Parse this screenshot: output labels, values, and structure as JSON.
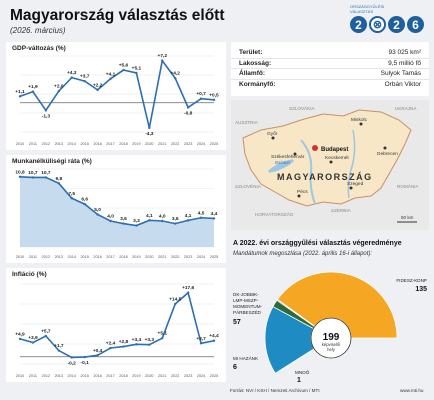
{
  "header": {
    "title": "Magyarország választás előtt",
    "subtitle": "(2026. március)",
    "logo_caption_1": "ORSZÁGGYŰLÉSI",
    "logo_caption_2": "VÁLASZTÁS",
    "logo_digits": [
      "2",
      "⊗",
      "2",
      "6"
    ]
  },
  "colors": {
    "line": "#2b6fb0",
    "area": "#c7dbee",
    "fidesz": "#f5a623",
    "opposition": "#1e8bc3",
    "mihazank": "#2e6b3a",
    "mnoo": "#8a8a8a",
    "hungary": "#f7e7c7",
    "neighbors": "#e8e8e8",
    "water": "#9cc6e6"
  },
  "facts": [
    {
      "key": "Terület:",
      "value": "93 025 km²"
    },
    {
      "key": "Lakosság:",
      "value": "9,5 millió fő"
    },
    {
      "key": "Államfő:",
      "value": "Sulyok Tamás"
    },
    {
      "key": "Kormányfő:",
      "value": "Orbán Viktor"
    }
  ],
  "map": {
    "country": "MAGYARORSZÁG",
    "capital": "Budapest",
    "cities": [
      "Miskolc",
      "Győr",
      "Debrecen",
      "Székesfehérvár",
      "Kecskemét",
      "Szeged",
      "Pécs"
    ],
    "neighbors": [
      "SZLOVÁKIA",
      "UKRAJNA",
      "AUSZTRIA",
      "ROMÁNIA",
      "SZLOVÉNIA",
      "HORVÁTORSZÁG",
      "SZERBIA"
    ],
    "lakes": [
      "Balaton"
    ],
    "scale": "50 km"
  },
  "chart_data": [
    {
      "type": "line",
      "title": "GDP-változás (%)",
      "x": [
        "2010",
        "2011",
        "2012",
        "2013",
        "2014",
        "2015",
        "2016",
        "2017",
        "2018",
        "2019",
        "2020",
        "2021",
        "2022",
        "2023",
        "2024",
        "2025"
      ],
      "values": [
        1.1,
        1.9,
        -1.3,
        2.0,
        4.3,
        3.7,
        2.2,
        4.1,
        5.6,
        5.1,
        -4.3,
        7.2,
        4.2,
        -0.8,
        0.7,
        0.5
      ],
      "labels": [
        "+1,1",
        "+1,9",
        "-1,3",
        "+2,0",
        "+4,3",
        "+3,7",
        "+2,2",
        "+4,1",
        "+5,6",
        "+5,1",
        "-4,3",
        "+7,2",
        "+4,2",
        "-0,8",
        "+0,7",
        "+0,5"
      ],
      "ylim": [
        -5,
        8
      ]
    },
    {
      "type": "area",
      "title": "Munkanélküliségi ráta (%)",
      "x": [
        "2010",
        "2011",
        "2012",
        "2013",
        "2014",
        "2015",
        "2016",
        "2017",
        "2018",
        "2019",
        "2020",
        "2021",
        "2022",
        "2023",
        "2024",
        "2025"
      ],
      "values": [
        10.8,
        10.7,
        10.7,
        9.8,
        7.5,
        6.6,
        5.0,
        4.0,
        3.6,
        3.3,
        4.1,
        4.0,
        3.6,
        4.1,
        4.5,
        4.4
      ],
      "labels": [
        "10,8",
        "10,7",
        "10,7",
        "9,8",
        "7,5",
        "6,6",
        "5,0",
        "4,0",
        "3,6",
        "3,3",
        "4,1",
        "4,0",
        "3,6",
        "4,1",
        "4,5",
        "4,4"
      ],
      "ylim": [
        0,
        12
      ]
    },
    {
      "type": "line",
      "title": "Infláció (%)",
      "x": [
        "2010",
        "2011",
        "2012",
        "2013",
        "2014",
        "2015",
        "2016",
        "2017",
        "2018",
        "2019",
        "2020",
        "2021",
        "2022",
        "2023",
        "2024",
        "2025"
      ],
      "values": [
        4.9,
        3.9,
        5.7,
        1.7,
        -0.2,
        -0.1,
        0.4,
        2.4,
        2.8,
        3.4,
        3.3,
        5.1,
        14.5,
        17.6,
        3.7,
        4.4
      ],
      "labels": [
        "+4,9",
        "+3,9",
        "+5,7",
        "+1,7",
        "-0,2",
        "-0,1",
        "+0,4",
        "+2,4",
        "+2,8",
        "+3,4",
        "+3,3",
        "+5,1",
        "+14,5",
        "+17,6",
        "+3,7",
        "+4,4"
      ],
      "ylim": [
        -2,
        20
      ]
    },
    {
      "type": "pie",
      "title": "A 2022. évi országgyűlési választás végeredménye",
      "subtitle": "Mandátumok megoszlása (2022. április 16-i állapot):",
      "center_value": "199",
      "center_label_1": "képviselői",
      "center_label_2": "hely",
      "slices": [
        {
          "name": "DK-JOBBIK-LMP-MSZP-MOMENTUM-PÁRBESZÉD",
          "value": 57
        },
        {
          "name": "MI HAZÁNK",
          "value": 6
        },
        {
          "name": "MNOÖ",
          "value": 1
        },
        {
          "name": "FIDESZ-KDNP",
          "value": 135
        }
      ]
    }
  ],
  "footer": {
    "source": "Forrás: NVI / KSH / Nemzeti Archívum / MTI",
    "credit": "www.mti.hu"
  }
}
